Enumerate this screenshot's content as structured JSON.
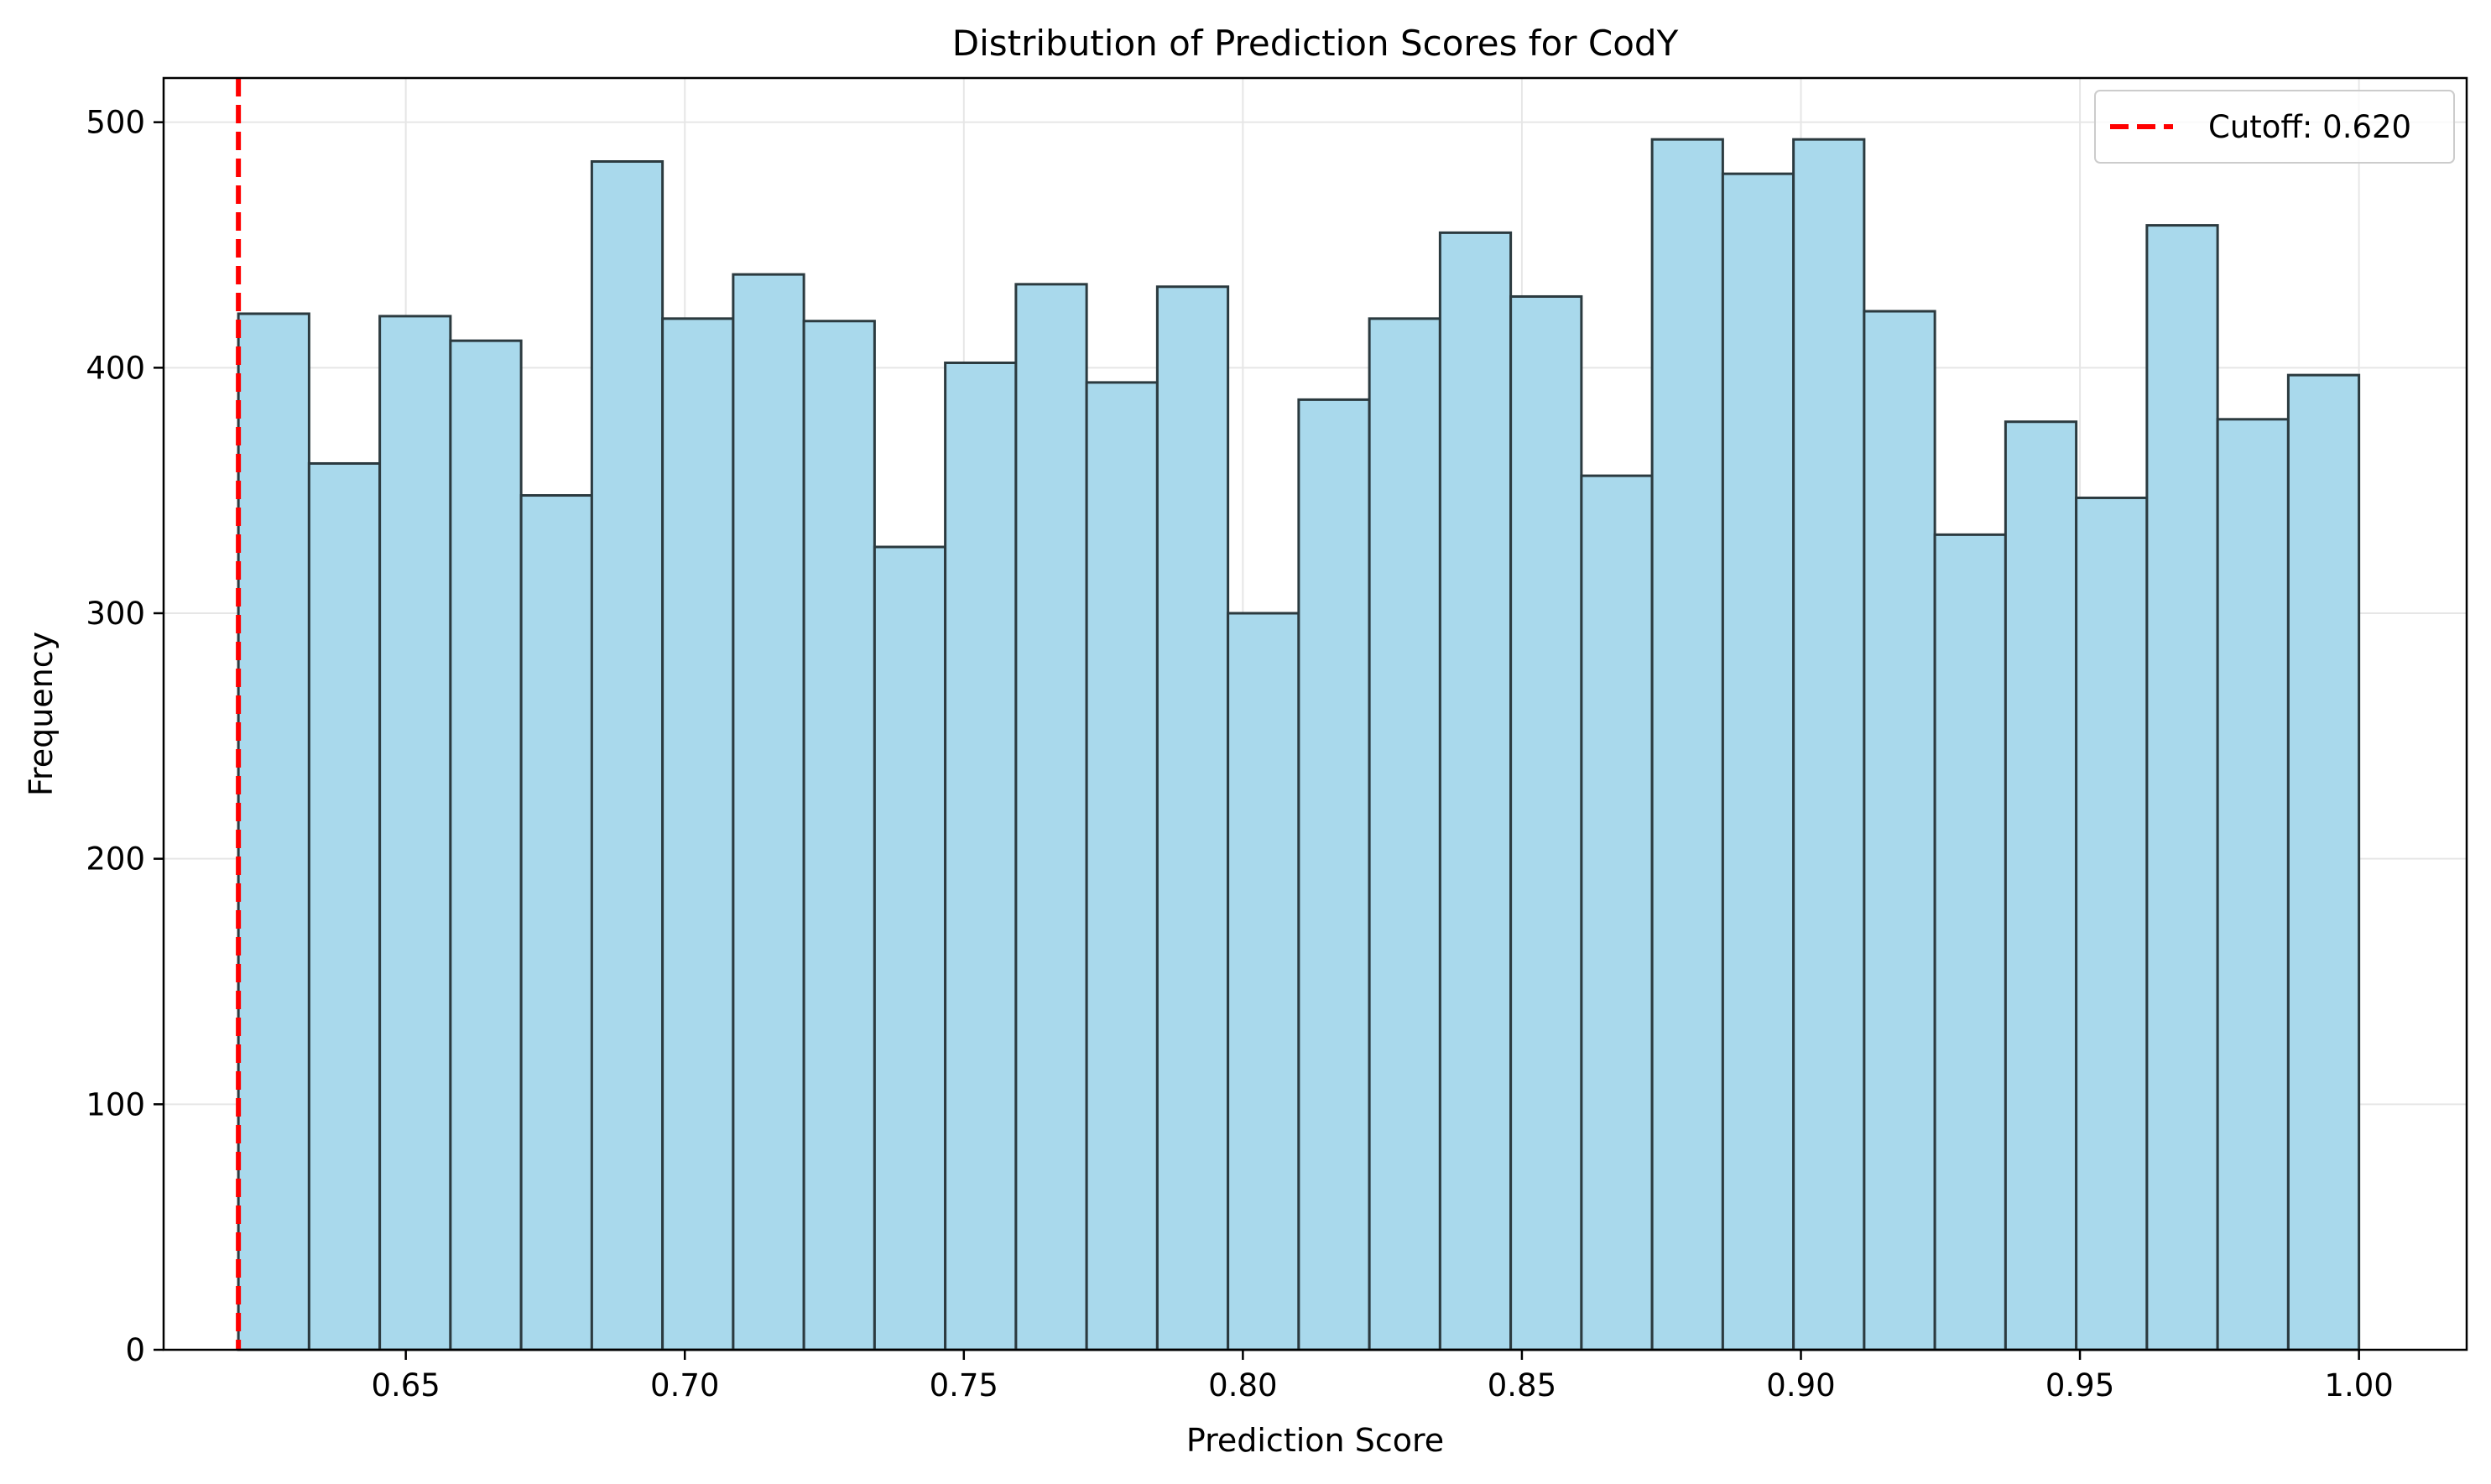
{
  "chart_data": {
    "type": "bar",
    "title": "Distribution of Prediction Scores for CodY",
    "xlabel": "Prediction Score",
    "ylabel": "Frequency",
    "xlim": [
      0.6066,
      1.0193
    ],
    "ylim": [
      0,
      518
    ],
    "grid": true,
    "bin_range": [
      0.62,
      1.0
    ],
    "x_ticks": [
      0.65,
      0.7,
      0.75,
      0.8,
      0.85,
      0.9,
      0.95,
      1.0
    ],
    "x_tick_labels": [
      "0.65",
      "0.70",
      "0.75",
      "0.80",
      "0.85",
      "0.90",
      "0.95",
      "1.00"
    ],
    "y_ticks": [
      0,
      100,
      200,
      300,
      400,
      500
    ],
    "y_tick_labels": [
      "0",
      "100",
      "200",
      "300",
      "400",
      "500"
    ],
    "values": [
      422,
      361,
      421,
      411,
      348,
      484,
      420,
      438,
      419,
      327,
      402,
      434,
      394,
      433,
      300,
      387,
      420,
      455,
      429,
      356,
      493,
      479,
      493,
      423,
      332,
      378,
      347,
      458,
      379,
      397
    ],
    "bar_color": "#a9d9ec",
    "bar_edge_color": "#2b3a3f",
    "cutoff": {
      "value": 0.62,
      "color": "#ff0000",
      "label": "Cutoff: 0.620"
    },
    "legend_position": "top-right"
  }
}
